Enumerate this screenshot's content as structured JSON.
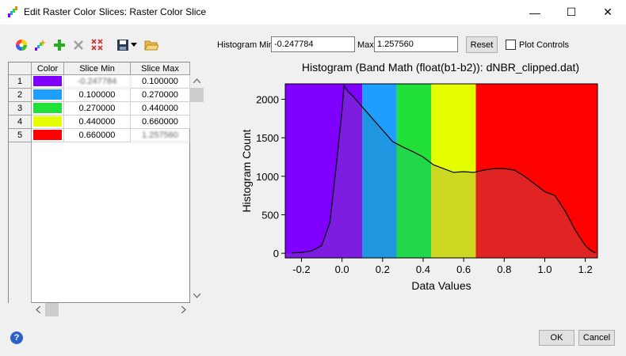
{
  "window": {
    "title": "Edit Raster Color Slices: Raster Color Slice",
    "icon": "raster-color-icon",
    "minimize": "—",
    "maximize": "☐",
    "close": "✕"
  },
  "toolbar": {
    "icons": [
      "color-wheel-icon",
      "auto-slice-icon",
      "add-slice-icon",
      "delete-slice-icon",
      "clear-slices-icon",
      "save-icon",
      "dropdown-arrow-icon",
      "open-folder-icon"
    ]
  },
  "histogram_controls": {
    "min_label": "Histogram Min",
    "min_value": "-0.247784",
    "max_label": "Max",
    "max_value": "1.257560",
    "reset_label": "Reset",
    "plot_controls_label": "Plot Controls",
    "plot_controls_checked": false
  },
  "table": {
    "headers": [
      "Color",
      "Slice Min",
      "Slice Max"
    ],
    "rows": [
      {
        "num": "1",
        "color": "#8000ff",
        "min": "-0.247784",
        "max": "0.100000"
      },
      {
        "num": "2",
        "color": "#1e9fff",
        "min": "0.100000",
        "max": "0.270000"
      },
      {
        "num": "3",
        "color": "#22e03a",
        "min": "0.270000",
        "max": "0.440000"
      },
      {
        "num": "4",
        "color": "#e6ff00",
        "min": "0.440000",
        "max": "0.660000"
      },
      {
        "num": "5",
        "color": "#ff0000",
        "min": "0.660000",
        "max": "1.257560"
      }
    ]
  },
  "buttons": {
    "ok": "OK",
    "cancel": "Cancel",
    "help": "?"
  },
  "chart_data": {
    "type": "area",
    "title": "Histogram (Band Math (float(b1-b2)): dNBR_clipped.dat)",
    "xlabel": "Data Values",
    "ylabel": "Histogram Count",
    "xlim": [
      -0.28,
      1.26
    ],
    "ylim": [
      -60,
      2200
    ],
    "xticks": [
      -0.2,
      0.0,
      0.2,
      0.4,
      0.6,
      0.8,
      1.0,
      1.2
    ],
    "xtick_labels": [
      "-0.2",
      "0.0",
      "0.2",
      "0.4",
      "0.6",
      "0.8",
      "1.0",
      "1.2"
    ],
    "yticks": [
      0,
      500,
      1000,
      1500,
      2000
    ],
    "ytick_labels": [
      "0",
      "500",
      "1000",
      "1500",
      "2000"
    ],
    "bands": [
      {
        "from": -0.28,
        "to": 0.1,
        "color": "#8000ff",
        "under_color": "#7d1de0"
      },
      {
        "from": 0.1,
        "to": 0.27,
        "color": "#1e9fff",
        "under_color": "#2196e0"
      },
      {
        "from": 0.27,
        "to": 0.44,
        "color": "#22e03a",
        "under_color": "#22d84a"
      },
      {
        "from": 0.44,
        "to": 0.66,
        "color": "#e6ff00",
        "under_color": "#ccd920"
      },
      {
        "from": 0.66,
        "to": 1.26,
        "color": "#ff0000",
        "under_color": "#e02424"
      }
    ],
    "x": [
      -0.25,
      -0.2,
      -0.15,
      -0.1,
      -0.06,
      -0.03,
      0.0,
      0.01,
      0.03,
      0.05,
      0.1,
      0.15,
      0.2,
      0.25,
      0.3,
      0.35,
      0.4,
      0.45,
      0.5,
      0.55,
      0.6,
      0.65,
      0.7,
      0.75,
      0.8,
      0.85,
      0.9,
      0.95,
      1.0,
      1.05,
      1.1,
      1.15,
      1.2,
      1.23,
      1.25
    ],
    "values": [
      5,
      10,
      30,
      100,
      400,
      1100,
      1850,
      2180,
      2100,
      2050,
      1900,
      1750,
      1600,
      1450,
      1380,
      1320,
      1250,
      1150,
      1100,
      1050,
      1060,
      1050,
      1080,
      1100,
      1100,
      1080,
      1000,
      900,
      800,
      750,
      550,
      300,
      100,
      30,
      5
    ]
  }
}
